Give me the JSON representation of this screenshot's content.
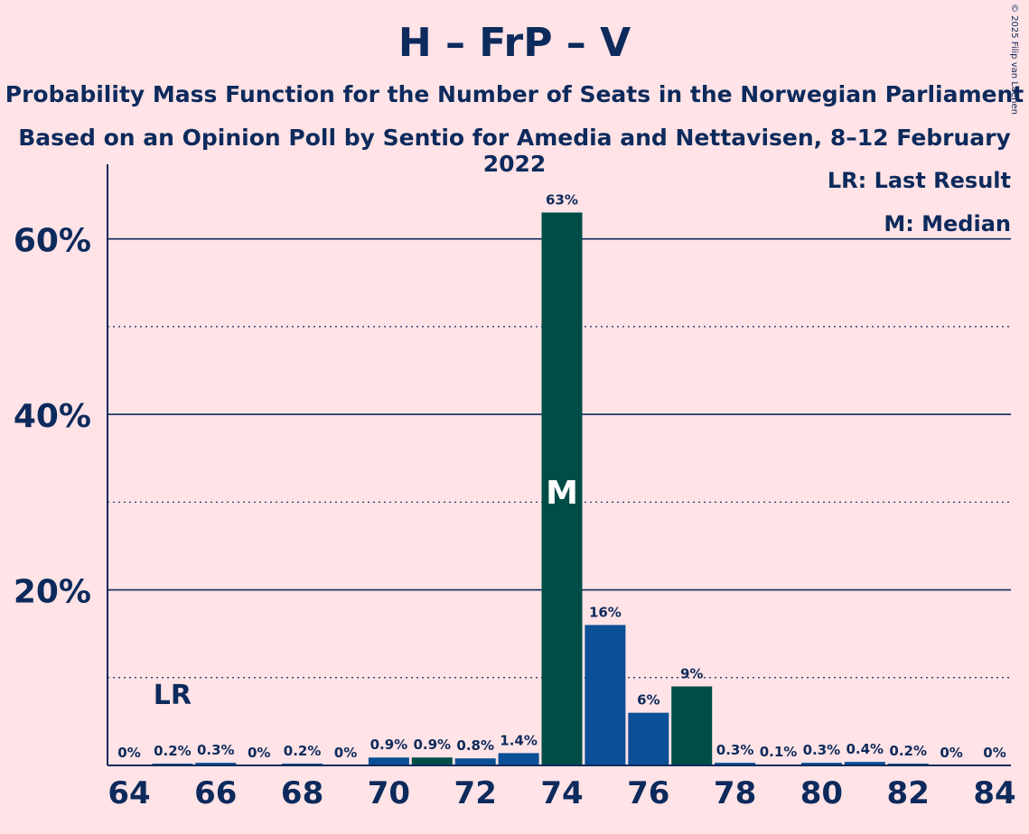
{
  "header": {
    "title": "H – FrP – V",
    "subtitle_1": "Probability Mass Function for the Number of Seats in the Norwegian Parliament",
    "subtitle_2": "Based on an Opinion Poll by Sentio for Amedia and Nettavisen, 8–12 February 2022",
    "copyright": "© 2025 Filip van Laenen"
  },
  "legend": {
    "last_result": "LR: Last Result",
    "median": "M: Median"
  },
  "colors": {
    "background": "#ffe3e6",
    "text": "#0d2a5c",
    "bar_blue": "#0b4f96",
    "bar_green": "#004d47"
  },
  "chart_data": {
    "type": "bar",
    "x": [
      64,
      65,
      66,
      67,
      68,
      69,
      70,
      71,
      72,
      73,
      74,
      75,
      76,
      77,
      78,
      79,
      80,
      81,
      82,
      83,
      84
    ],
    "values": [
      0,
      0.2,
      0.3,
      0,
      0.2,
      0,
      0.9,
      0.9,
      0.8,
      1.4,
      63,
      16,
      6,
      9,
      0.3,
      0.1,
      0.3,
      0.4,
      0.2,
      0,
      0
    ],
    "data_labels": [
      "0%",
      "0.2%",
      "0.3%",
      "0%",
      "0.2%",
      "0%",
      "0.9%",
      "0.9%",
      "0.8%",
      "1.4%",
      "63%",
      "16%",
      "6%",
      "9%",
      "0.3%",
      "0.1%",
      "0.3%",
      "0.4%",
      "0.2%",
      "0%",
      "0%"
    ],
    "bar_colors": [
      "blue",
      "blue",
      "blue",
      "blue",
      "blue",
      "blue",
      "blue",
      "green",
      "blue",
      "blue",
      "green",
      "blue",
      "blue",
      "green",
      "blue",
      "blue",
      "blue",
      "blue",
      "blue",
      "blue",
      "blue"
    ],
    "x_tick_labels": [
      "64",
      "66",
      "68",
      "70",
      "72",
      "74",
      "76",
      "78",
      "80",
      "82",
      "84"
    ],
    "y_tick_labels": [
      "20%",
      "40%",
      "60%"
    ],
    "ylim": [
      0,
      68.5
    ],
    "y_major_grid": [
      20,
      40,
      60
    ],
    "y_minor_grid": [
      10,
      30,
      50
    ],
    "last_result_seat": 65,
    "last_result_label": "LR",
    "median_seat": 74,
    "median_label": "M"
  }
}
